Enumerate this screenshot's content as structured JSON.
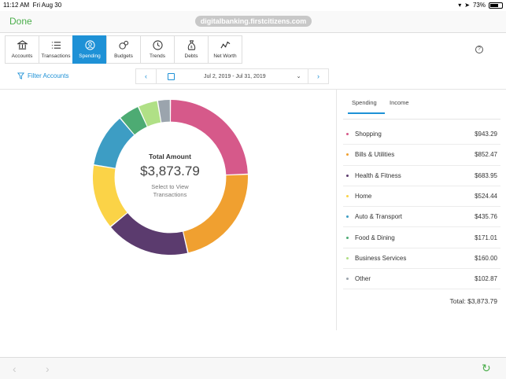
{
  "status": {
    "time": "11:12 AM",
    "date": "Fri Aug 30",
    "battery": "73%",
    "battery_level": 0.73
  },
  "nav": {
    "done": "Done",
    "url": "digitalbanking.firstcitizens.com"
  },
  "tabs": [
    {
      "label": "Accounts",
      "icon": "bank-icon",
      "active": false
    },
    {
      "label": "Transactions",
      "icon": "list-icon",
      "active": false
    },
    {
      "label": "Spending",
      "icon": "person-circle-icon",
      "active": true
    },
    {
      "label": "Budgets",
      "icon": "budget-icon",
      "active": false
    },
    {
      "label": "Trends",
      "icon": "clock-icon",
      "active": false
    },
    {
      "label": "Debts",
      "icon": "money-bag-icon",
      "active": false
    },
    {
      "label": "Net Worth",
      "icon": "line-chart-icon",
      "active": false
    }
  ],
  "help": "?",
  "filter": {
    "label": "Filter Accounts"
  },
  "date_range": {
    "text": "Jul 2, 2019 - Jul 31, 2019",
    "prev": "‹",
    "next": "›",
    "chev": "⌄"
  },
  "center": {
    "label": "Total Amount",
    "amount": "$3,873.79",
    "hint1": "Select to View",
    "hint2": "Transactions"
  },
  "right_tabs": {
    "spending": "Spending",
    "income": "Income"
  },
  "categories": [
    {
      "name": "Shopping",
      "amount": "$943.29",
      "value": 943.29,
      "color": "#d6598a"
    },
    {
      "name": "Bills & Utilities",
      "amount": "$852.47",
      "value": 852.47,
      "color": "#f0a030"
    },
    {
      "name": "Health & Fitness",
      "amount": "$683.95",
      "value": 683.95,
      "color": "#5b3b6e"
    },
    {
      "name": "Home",
      "amount": "$524.44",
      "value": 524.44,
      "color": "#fbd347"
    },
    {
      "name": "Auto & Transport",
      "amount": "$435.76",
      "value": 435.76,
      "color": "#3d9dc4"
    },
    {
      "name": "Food & Dining",
      "amount": "$171.01",
      "value": 171.01,
      "color": "#4dab73"
    },
    {
      "name": "Business Services",
      "amount": "$160.00",
      "value": 160.0,
      "color": "#b0e086"
    },
    {
      "name": "Other",
      "amount": "$102.87",
      "value": 102.87,
      "color": "#9ba4ad"
    }
  ],
  "total": "Total: $3,873.79",
  "bottom": {
    "back": "‹",
    "fwd": "›",
    "reload": "↻"
  }
}
